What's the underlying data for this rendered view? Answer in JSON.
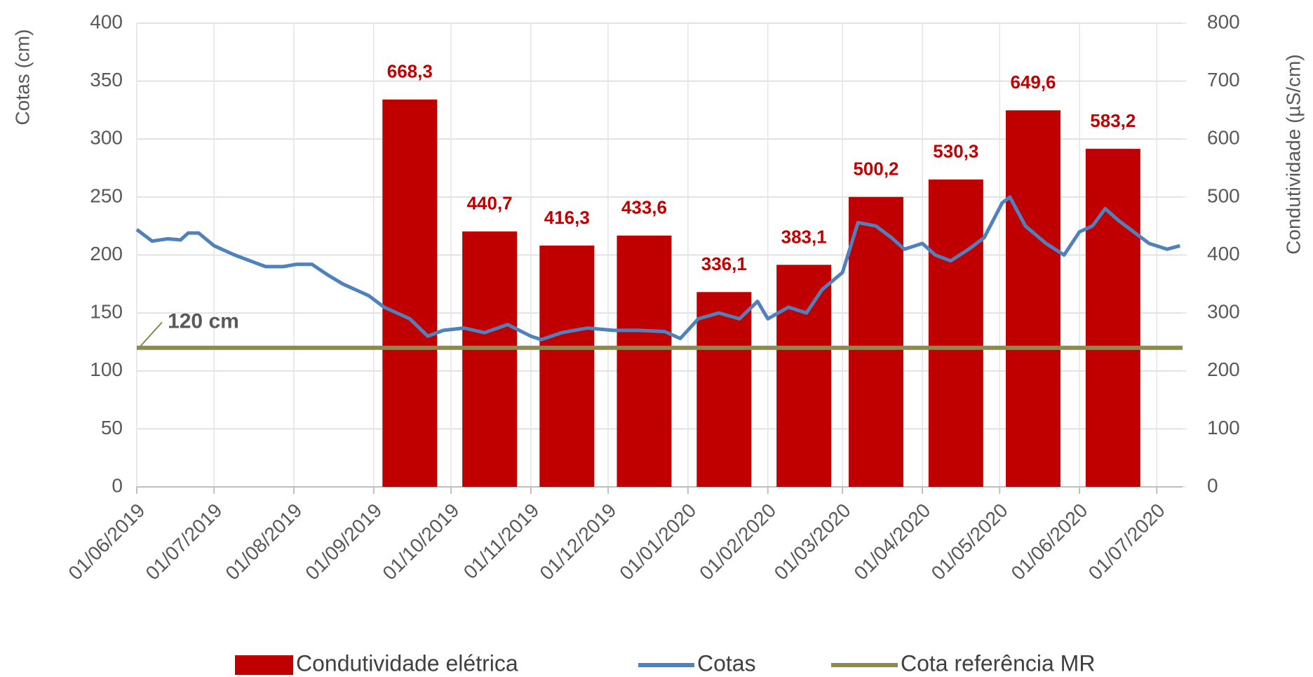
{
  "chart_data": {
    "type": "bar-line",
    "y_label": "Cotas (cm)",
    "y2_label": "Condutividade (µS/cm)",
    "xlim": [
      "2019-06-01",
      "2020-07-11"
    ],
    "xticks": [
      {
        "value": "2019-06-01",
        "label": "01/06/2019"
      },
      {
        "value": "2019-07-01",
        "label": "01/07/2019"
      },
      {
        "value": "2019-08-01",
        "label": "01/08/2019"
      },
      {
        "value": "2019-09-01",
        "label": "01/09/2019"
      },
      {
        "value": "2019-10-01",
        "label": "01/10/2019"
      },
      {
        "value": "2019-11-01",
        "label": "01/11/2019"
      },
      {
        "value": "2019-12-01",
        "label": "01/12/2019"
      },
      {
        "value": "2020-01-01",
        "label": "01/01/2020"
      },
      {
        "value": "2020-02-01",
        "label": "01/02/2020"
      },
      {
        "value": "2020-03-01",
        "label": "01/03/2020"
      },
      {
        "value": "2020-04-01",
        "label": "01/04/2020"
      },
      {
        "value": "2020-05-01",
        "label": "01/05/2020"
      },
      {
        "value": "2020-06-01",
        "label": "01/06/2020"
      },
      {
        "value": "2020-07-01",
        "label": "01/07/2020"
      }
    ],
    "ylim": [
      0,
      400
    ],
    "yticks": [
      0,
      50,
      100,
      150,
      200,
      250,
      300,
      350,
      400
    ],
    "y2lim": [
      0,
      800
    ],
    "y2ticks": [
      0,
      100,
      200,
      300,
      400,
      500,
      600,
      700,
      800
    ],
    "grid": true,
    "legend": "bottom",
    "series": [
      {
        "name": "Condutividade elétrica",
        "type": "bar",
        "axis": "y2",
        "color": "#c00000",
        "x": [
          "2019-09-15",
          "2019-10-16",
          "2019-11-15",
          "2019-12-15",
          "2020-01-15",
          "2020-02-15",
          "2020-03-14",
          "2020-04-14",
          "2020-05-14",
          "2020-06-14"
        ],
        "values": [
          668.3,
          440.7,
          416.3,
          433.6,
          336.1,
          383.1,
          500.2,
          530.3,
          649.6,
          583.2
        ],
        "value_labels": [
          "668,3",
          "440,7",
          "416,3",
          "433,6",
          "336,1",
          "383,1",
          "500,2",
          "530,3",
          "649,6",
          "583,2"
        ]
      },
      {
        "name": "Cotas",
        "type": "line",
        "color": "#4f81bd",
        "x": [
          "2019-06-01",
          "2019-06-07",
          "2019-06-13",
          "2019-06-18",
          "2019-06-21",
          "2019-06-25",
          "2019-07-01",
          "2019-07-09",
          "2019-07-15",
          "2019-07-21",
          "2019-07-28",
          "2019-08-02",
          "2019-08-08",
          "2019-08-14",
          "2019-08-20",
          "2019-08-30",
          "2019-09-05",
          "2019-09-15",
          "2019-09-22",
          "2019-09-28",
          "2019-10-06",
          "2019-10-14",
          "2019-10-23",
          "2019-11-01",
          "2019-11-05",
          "2019-11-13",
          "2019-11-23",
          "2019-12-03",
          "2019-12-13",
          "2019-12-23",
          "2019-12-29",
          "2020-01-05",
          "2020-01-13",
          "2020-01-21",
          "2020-01-28",
          "2020-02-01",
          "2020-02-09",
          "2020-02-16",
          "2020-02-22",
          "2020-03-01",
          "2020-03-07",
          "2020-03-14",
          "2020-03-20",
          "2020-03-25",
          "2020-04-01",
          "2020-04-06",
          "2020-04-12",
          "2020-04-19",
          "2020-04-25",
          "2020-05-02",
          "2020-05-05",
          "2020-05-11",
          "2020-05-19",
          "2020-05-26",
          "2020-06-01",
          "2020-06-06",
          "2020-06-11",
          "2020-06-16",
          "2020-06-22",
          "2020-06-28",
          "2020-07-05",
          "2020-07-10"
        ],
        "values": [
          222,
          212,
          214,
          213,
          219,
          219,
          208,
          200,
          195,
          190,
          190,
          192,
          192,
          183,
          175,
          165,
          155,
          145,
          130,
          135,
          137,
          133,
          140,
          130,
          127,
          133,
          137,
          135,
          135,
          134,
          128,
          145,
          150,
          145,
          160,
          145,
          155,
          150,
          170,
          185,
          228,
          225,
          215,
          205,
          210,
          200,
          195,
          205,
          215,
          245,
          250,
          225,
          210,
          200,
          220,
          225,
          240,
          230,
          220,
          210,
          205,
          208
        ]
      },
      {
        "name": "Cota referência MR",
        "type": "hline",
        "color": "#8c8a4e",
        "value": 120
      }
    ],
    "annotations": [
      {
        "text": "120 cm",
        "x": "2019-06-13",
        "y": 142
      }
    ]
  }
}
